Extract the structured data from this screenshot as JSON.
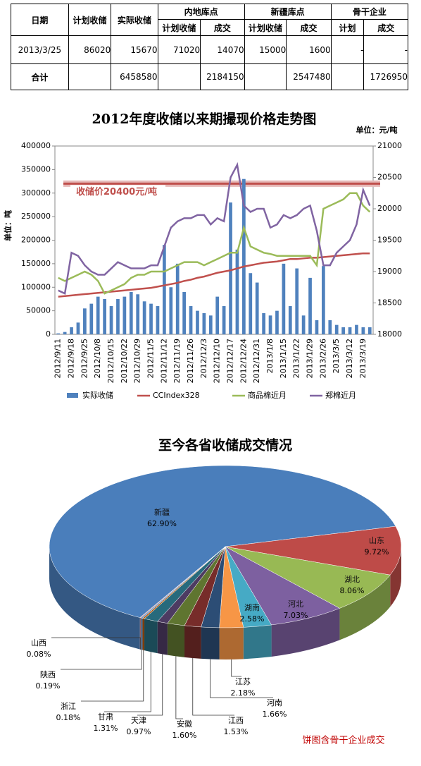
{
  "table": {
    "columns_top": [
      "日期",
      "计划收储",
      "实际收储",
      "内地库点",
      "新疆库点",
      "骨干企业"
    ],
    "columns_sub": [
      "计划收储",
      "成交",
      "计划收储",
      "成交",
      "计划",
      "成交"
    ],
    "rows": [
      [
        "2013/3/25",
        86020,
        15670,
        71020,
        14070,
        15000,
        1600,
        "-",
        "-"
      ],
      [
        "合计",
        null,
        6458580,
        null,
        2184150,
        null,
        2547480,
        null,
        1726950
      ]
    ]
  },
  "chart_data": [
    {
      "type": "combo",
      "title": "2012年度收储以来期撮现价格走势图",
      "y_label": "单位：吨",
      "y2_label": "单位：元/吨",
      "categories": [
        "2012/9/11",
        null,
        "2012/9/18",
        null,
        "2012/9/25",
        null,
        "2012/10/8",
        null,
        "2012/10/15",
        null,
        "2012/10/22",
        null,
        "2012/10/29",
        null,
        "2012/11/5",
        null,
        "2012/11/12",
        null,
        "2012/11/19",
        null,
        "2012/11/26",
        null,
        "2012/12/3",
        null,
        "2012/12/10",
        null,
        "2012/12/17",
        null,
        "2012/12/24",
        null,
        "2012/12/31",
        null,
        "2013/1/8",
        null,
        "2013/1/15",
        null,
        "2013/1/22",
        null,
        "2013/1/29",
        null,
        "2013/2/26",
        null,
        "2013/3/5",
        null,
        "2013/3/12",
        null,
        "2013/3/19",
        null
      ],
      "series": [
        {
          "name": "实际收储",
          "type": "bar",
          "color": "#4f81bd",
          "values": [
            2000,
            5000,
            15000,
            25000,
            55000,
            65000,
            80000,
            75000,
            60000,
            75000,
            80000,
            90000,
            85000,
            70000,
            65000,
            60000,
            190000,
            100000,
            150000,
            90000,
            60000,
            50000,
            45000,
            40000,
            80000,
            60000,
            280000,
            180000,
            330000,
            130000,
            110000,
            45000,
            40000,
            50000,
            150000,
            60000,
            140000,
            40000,
            120000,
            30000,
            145000,
            30000,
            20000,
            15000,
            15000,
            20000,
            15000,
            15000
          ]
        },
        {
          "name": "CCIndex328",
          "type": "line",
          "axis": "y2",
          "color": "#c0504d",
          "values": [
            18600,
            18610,
            18620,
            18630,
            18640,
            18650,
            18660,
            18670,
            18680,
            18690,
            18700,
            18710,
            18720,
            18730,
            18740,
            18760,
            18780,
            18800,
            18820,
            18850,
            18870,
            18900,
            18920,
            18950,
            18980,
            19000,
            19020,
            19050,
            19080,
            19100,
            19120,
            19140,
            19150,
            19160,
            19180,
            19200,
            19200,
            19210,
            19220,
            19220,
            19230,
            19240,
            19250,
            19260,
            19270,
            19280,
            19290,
            19290
          ]
        },
        {
          "name": "商品棉近月",
          "type": "line",
          "axis": "y2",
          "color": "#9bbb59",
          "values": [
            18900,
            18850,
            18900,
            18950,
            19000,
            18950,
            18850,
            18650,
            18700,
            18750,
            18800,
            18900,
            18950,
            18950,
            19000,
            19000,
            19000,
            19050,
            19100,
            19150,
            19150,
            19150,
            19100,
            19150,
            19200,
            19250,
            19300,
            19300,
            19700,
            19400,
            19350,
            19300,
            19280,
            19250,
            19250,
            19250,
            19250,
            19250,
            19250,
            19100,
            20000,
            20050,
            20100,
            20150,
            20250,
            20250,
            20050,
            19950
          ]
        },
        {
          "name": "郑棉近月",
          "type": "line",
          "axis": "y2",
          "color": "#8064a2",
          "values": [
            18700,
            18650,
            19300,
            19250,
            19100,
            19000,
            18950,
            18950,
            19050,
            19150,
            19100,
            19050,
            19050,
            19050,
            19100,
            19100,
            19400,
            19700,
            19800,
            19850,
            19850,
            19900,
            19900,
            19750,
            19850,
            19800,
            20500,
            20700,
            20050,
            19950,
            20000,
            20000,
            19700,
            19750,
            19900,
            19850,
            19900,
            20000,
            20050,
            19650,
            19100,
            19100,
            19300,
            19400,
            19500,
            19750,
            20300,
            20050
          ]
        }
      ],
      "ylim": [
        0,
        400000
      ],
      "yticks": [
        0,
        50000,
        100000,
        150000,
        200000,
        250000,
        300000,
        350000,
        400000
      ],
      "y2lim": [
        18000,
        21000
      ],
      "y2ticks": [
        18000,
        18500,
        19000,
        19500,
        20000,
        20500,
        21000
      ],
      "reference_line": {
        "value": 20400,
        "label": "收储价20400元/吨",
        "color": "#c0504d"
      }
    },
    {
      "type": "pie",
      "title": "至今各省收储成交情况",
      "note": "饼图含骨干企业成交",
      "categories": [
        "新疆",
        "山东",
        "湖北",
        "河北",
        "湖南",
        "江苏",
        "河南",
        "江西",
        "安徽",
        "天津",
        "甘肃",
        "浙江",
        "陕西",
        "山西"
      ],
      "values": [
        62.9,
        9.72,
        8.06,
        7.03,
        2.58,
        2.18,
        1.66,
        1.53,
        1.6,
        0.97,
        1.31,
        0.18,
        0.19,
        0.08
      ],
      "value_labels": [
        "62.90%",
        "9.72%",
        "8.06%",
        "7.03%",
        "2.58%",
        "2.18%",
        "1.66%",
        "1.53%",
        "1.60%",
        "0.97%",
        "1.31%",
        "0.18%",
        "0.19%",
        "0.08%"
      ],
      "colors": [
        "#4a7ebb",
        "#be4b48",
        "#98b954",
        "#7d60a0",
        "#46aac5",
        "#f79646",
        "#2c4d75",
        "#772c2a",
        "#5f7530",
        "#4d3b62",
        "#276a7c",
        "#b65708",
        "#729aca",
        "#cd7371"
      ]
    }
  ]
}
